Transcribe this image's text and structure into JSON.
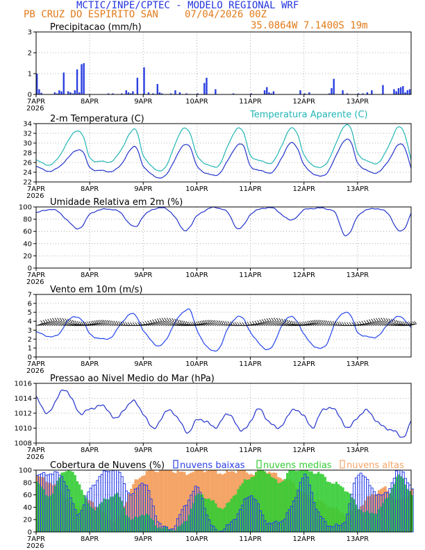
{
  "header": {
    "line1": "MCTIC/INPE/CPTEC - MODELO REGIONAL WRF",
    "line2_left": "PB CRUZ DO ESPIRITO SAN",
    "line2_right": "07/04/2026 00Z",
    "coords": "35.0864W 7.1400S 19m"
  },
  "colors": {
    "title_blue": "#2233dd",
    "header_orange": "#e07a1a",
    "bar_blue": "#2b3fe0",
    "temp_blue": "#2233cc",
    "apparent_cyan": "#22b5b5",
    "wind_line": "#2244ee",
    "wind_barb": "#000000",
    "clouds_low": "#2a3fe6",
    "clouds_mid": "#33cc33",
    "clouds_high": "#f4a466"
  },
  "xaxis": {
    "tick_labels": [
      "7APR",
      "8APR",
      "9APR",
      "10APR",
      "11APR",
      "12APR",
      "13APR"
    ],
    "year": "2026",
    "range_hours": [
      0,
      168
    ]
  },
  "chart_data": [
    {
      "type": "bar",
      "title": "Precipitacao (mm/h)",
      "ylim": [
        0,
        3
      ],
      "yticks": [
        "0",
        "1",
        "2",
        "3"
      ],
      "x_unit": "hours after 07APR 00Z",
      "x": [
        0,
        1,
        2,
        8,
        9,
        10,
        11,
        12,
        14,
        15,
        16,
        17,
        18,
        19,
        20,
        21,
        32,
        34,
        38,
        40,
        41,
        42,
        43,
        45,
        48,
        50,
        52,
        54,
        55,
        56,
        60,
        62,
        64,
        67,
        72,
        75,
        76,
        80,
        88,
        96,
        102,
        103,
        104,
        105,
        106,
        118,
        120,
        122,
        131,
        132,
        133,
        137,
        139,
        144,
        146,
        148,
        150,
        155,
        160,
        161,
        162,
        163,
        164,
        165,
        166,
        167
      ],
      "values": [
        1.0,
        0.25,
        0.08,
        0.1,
        0.05,
        0.2,
        0.15,
        1.05,
        0.15,
        0.1,
        0.05,
        0.2,
        1.2,
        0.1,
        1.45,
        1.5,
        0.05,
        0.05,
        0.05,
        0.2,
        0.1,
        0.05,
        0.15,
        0.8,
        1.3,
        0.1,
        0.05,
        0.5,
        0.1,
        0.05,
        0.05,
        0.2,
        0.1,
        0.05,
        0.05,
        0.55,
        0.8,
        0.25,
        0.05,
        0.05,
        0.2,
        0.35,
        0.1,
        0.05,
        0.15,
        0.2,
        0.05,
        0.1,
        0.05,
        0.3,
        0.75,
        0.2,
        0.05,
        0.05,
        0.05,
        0.1,
        0.2,
        0.45,
        0.25,
        0.15,
        0.3,
        0.35,
        0.4,
        0.1,
        0.2,
        0.25
      ]
    },
    {
      "type": "line",
      "title": "2-m Temperatura (C)",
      "ylim": [
        22,
        34
      ],
      "yticks": [
        "22",
        "24",
        "26",
        "28",
        "30",
        "32",
        "34"
      ],
      "x_unit": "hours after 07APR 00Z",
      "series": [
        {
          "name": "",
          "x": [
            0,
            6,
            10,
            14,
            18,
            21,
            24,
            30,
            34,
            38,
            42,
            45,
            48,
            54,
            58,
            62,
            66,
            69,
            72,
            78,
            82,
            86,
            90,
            93,
            96,
            102,
            106,
            110,
            114,
            117,
            120,
            126,
            130,
            134,
            138,
            141,
            144,
            150,
            154,
            158,
            162,
            165,
            168
          ],
          "values": [
            25.2,
            24.2,
            25.0,
            26.8,
            28.5,
            28.2,
            25.0,
            24.3,
            24.2,
            25.5,
            28.5,
            29.0,
            25.3,
            23.0,
            23.3,
            26.5,
            29.5,
            29.2,
            25.3,
            23.5,
            23.7,
            26.5,
            29.5,
            29.3,
            25.3,
            24.2,
            24.0,
            27.0,
            30.0,
            29.0,
            25.5,
            23.3,
            23.7,
            27.0,
            30.5,
            30.2,
            26.0,
            24.0,
            24.2,
            26.5,
            29.5,
            29.2,
            24.8
          ]
        },
        {
          "name": "Temperatura Aparente (C)",
          "x": [
            0,
            6,
            10,
            14,
            18,
            21,
            24,
            30,
            34,
            38,
            42,
            45,
            48,
            54,
            58,
            62,
            66,
            69,
            72,
            78,
            82,
            86,
            90,
            93,
            96,
            102,
            106,
            110,
            114,
            117,
            120,
            126,
            130,
            134,
            138,
            141,
            144,
            150,
            154,
            158,
            162,
            165,
            168
          ],
          "values": [
            26.5,
            25.5,
            27.0,
            30.2,
            32.5,
            31.5,
            27.0,
            26.2,
            26.3,
            28.5,
            32.0,
            32.5,
            27.5,
            24.5,
            25.0,
            29.5,
            33.0,
            32.0,
            27.5,
            25.3,
            25.5,
            29.5,
            33.0,
            32.0,
            27.5,
            26.2,
            26.0,
            29.5,
            33.0,
            32.0,
            27.5,
            25.0,
            25.8,
            29.5,
            33.5,
            33.0,
            28.0,
            26.0,
            26.2,
            29.5,
            33.2,
            32.0,
            26.5
          ]
        }
      ]
    },
    {
      "type": "line",
      "title": "Umidade Relativa em 2m (%)",
      "ylim": [
        0,
        100
      ],
      "yticks": [
        "0",
        "20",
        "40",
        "60",
        "80",
        "100"
      ],
      "x_unit": "hours after 07APR 00Z",
      "series": [
        {
          "name": "",
          "x": [
            0,
            6,
            10,
            14,
            18,
            21,
            24,
            30,
            34,
            38,
            42,
            45,
            48,
            54,
            58,
            62,
            66,
            69,
            72,
            78,
            82,
            86,
            90,
            93,
            96,
            102,
            106,
            110,
            114,
            117,
            120,
            126,
            130,
            134,
            138,
            141,
            144,
            150,
            154,
            158,
            162,
            165,
            168
          ],
          "values": [
            90,
            96,
            92,
            78,
            65,
            70,
            88,
            96,
            96,
            90,
            72,
            68,
            85,
            98,
            97,
            85,
            62,
            68,
            85,
            98,
            98,
            90,
            65,
            70,
            88,
            98,
            98,
            88,
            78,
            85,
            95,
            98,
            97,
            90,
            55,
            60,
            85,
            97,
            96,
            88,
            62,
            65,
            90
          ]
        }
      ]
    },
    {
      "type": "line",
      "title": "Vento em 10m (m/s)",
      "ylim": [
        0,
        7
      ],
      "yticks": [
        "0",
        "1",
        "2",
        "3",
        "4",
        "5",
        "6",
        "7"
      ],
      "x_unit": "hours after 07APR 00Z",
      "series": [
        {
          "name": "",
          "x": [
            0,
            6,
            10,
            14,
            18,
            21,
            24,
            30,
            34,
            38,
            42,
            45,
            48,
            54,
            58,
            62,
            66,
            69,
            72,
            78,
            82,
            86,
            90,
            93,
            96,
            102,
            106,
            110,
            114,
            117,
            120,
            126,
            130,
            134,
            138,
            141,
            144,
            150,
            154,
            158,
            162,
            165,
            168
          ],
          "values": [
            2.8,
            2.3,
            2.5,
            4.0,
            4.5,
            4.0,
            2.6,
            2.0,
            2.3,
            3.7,
            4.8,
            4.5,
            3.0,
            1.3,
            1.8,
            3.8,
            5.0,
            5.3,
            3.0,
            0.8,
            1.0,
            3.2,
            4.5,
            4.2,
            2.8,
            1.0,
            1.2,
            3.5,
            4.5,
            4.0,
            2.5,
            1.0,
            1.4,
            3.8,
            5.0,
            4.6,
            2.8,
            2.2,
            2.5,
            3.8,
            4.5,
            4.2,
            3.3
          ]
        }
      ]
    },
    {
      "type": "line",
      "title": "Pressao ao Nivel Medio do Mar (hPa)",
      "ylim": [
        1008,
        1016
      ],
      "yticks": [
        "1008",
        "1010",
        "1012",
        "1014",
        "1016"
      ],
      "x_unit": "hours after 07APR 00Z",
      "series": [
        {
          "name": "",
          "x": [
            0,
            4,
            8,
            12,
            16,
            20,
            24,
            28,
            32,
            36,
            40,
            44,
            48,
            52,
            56,
            60,
            64,
            68,
            72,
            76,
            80,
            84,
            88,
            92,
            96,
            100,
            104,
            108,
            112,
            116,
            120,
            124,
            128,
            132,
            136,
            140,
            144,
            148,
            152,
            156,
            160,
            164,
            168
          ],
          "values": [
            1014.2,
            1012.2,
            1013.0,
            1015.3,
            1013.8,
            1012.0,
            1012.5,
            1013.0,
            1012.5,
            1011.2,
            1012.8,
            1013.5,
            1012.0,
            1010.0,
            1011.2,
            1012.5,
            1011.0,
            1009.5,
            1011.0,
            1011.0,
            1010.0,
            1011.5,
            1011.5,
            1009.5,
            1011.0,
            1012.5,
            1011.0,
            1010.0,
            1011.2,
            1012.6,
            1011.5,
            1010.2,
            1012.2,
            1012.8,
            1011.5,
            1010.0,
            1011.5,
            1012.3,
            1011.2,
            1010.0,
            1009.8,
            1008.7,
            1011.0
          ]
        }
      ]
    },
    {
      "type": "bar",
      "title": "Cobertura de Nuvens (%)",
      "ylim": [
        0,
        100
      ],
      "yticks": [
        "0",
        "20",
        "40",
        "60",
        "80",
        "100"
      ],
      "x_unit": "hours after 07APR 00Z",
      "legend": [
        "nuvens baixas",
        "nuvens medias",
        "nuvens altas"
      ],
      "series": [
        {
          "name": "nuvens baixas",
          "x": [
            0,
            6,
            12,
            18,
            24,
            30,
            36,
            42,
            48,
            54,
            60,
            66,
            72,
            78,
            84,
            90,
            96,
            102,
            108,
            114,
            120,
            126,
            132,
            138,
            144,
            150,
            156,
            162,
            168
          ],
          "values": [
            90,
            95,
            85,
            30,
            70,
            95,
            100,
            60,
            80,
            20,
            5,
            40,
            70,
            10,
            5,
            30,
            60,
            20,
            15,
            40,
            90,
            30,
            10,
            20,
            95,
            70,
            60,
            100,
            70
          ]
        },
        {
          "name": "nuvens medias",
          "x": [
            0,
            6,
            12,
            18,
            24,
            30,
            36,
            42,
            48,
            54,
            60,
            66,
            72,
            78,
            84,
            90,
            96,
            102,
            108,
            114,
            120,
            126,
            132,
            138,
            144,
            150,
            156,
            162,
            168
          ],
          "values": [
            80,
            60,
            100,
            85,
            40,
            50,
            60,
            20,
            30,
            10,
            5,
            15,
            60,
            50,
            40,
            70,
            90,
            100,
            80,
            100,
            100,
            95,
            80,
            70,
            40,
            30,
            50,
            90,
            60
          ]
        },
        {
          "name": "nuvens altas",
          "x": [
            0,
            6,
            12,
            18,
            24,
            30,
            36,
            42,
            48,
            54,
            60,
            66,
            72,
            78,
            84,
            90,
            96,
            102,
            108,
            114,
            120,
            126,
            132,
            138,
            144,
            150,
            156,
            162,
            168
          ],
          "values": [
            90,
            80,
            60,
            40,
            50,
            30,
            20,
            70,
            95,
            100,
            100,
            95,
            100,
            100,
            95,
            100,
            95,
            100,
            90,
            80,
            60,
            50,
            40,
            30,
            40,
            60,
            70,
            50,
            70
          ]
        }
      ]
    }
  ]
}
